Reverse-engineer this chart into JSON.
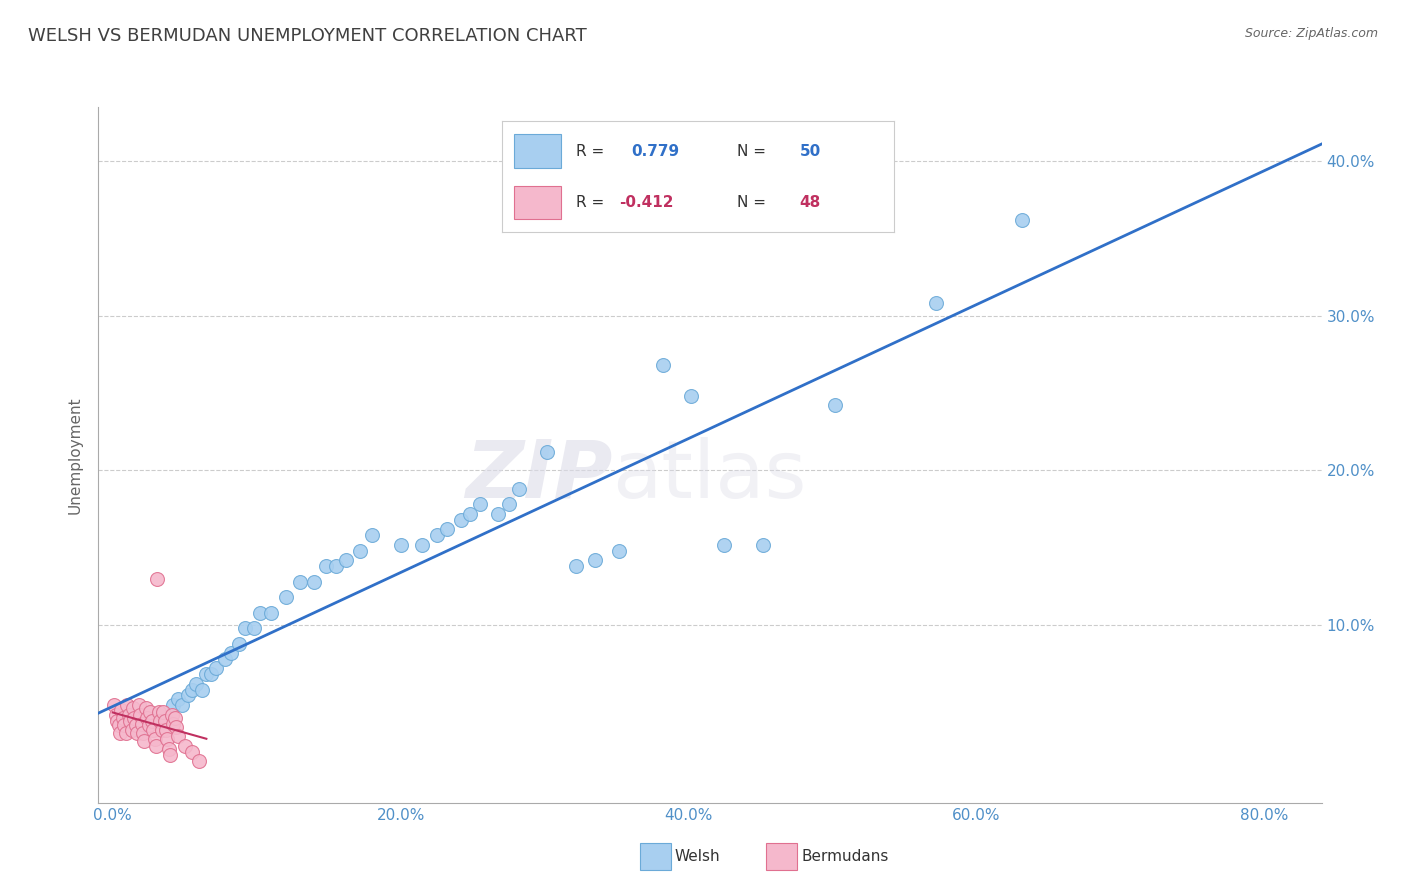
{
  "title": "WELSH VS BERMUDAN UNEMPLOYMENT CORRELATION CHART",
  "source": "Source: ZipAtlas.com",
  "ylabel": "Unemployment",
  "y_ticks": [
    0.1,
    0.2,
    0.3,
    0.4
  ],
  "y_tick_labels": [
    "10.0%",
    "20.0%",
    "30.0%",
    "40.0%"
  ],
  "x_ticks": [
    0.0,
    0.2,
    0.4,
    0.6,
    0.8
  ],
  "x_tick_labels": [
    "0.0%",
    "20.0%",
    "40.0%",
    "60.0%",
    "80.0%"
  ],
  "xlim": [
    -0.01,
    0.84
  ],
  "ylim": [
    -0.015,
    0.435
  ],
  "welsh_color": "#A8CFF0",
  "bermudan_color": "#F5B8CC",
  "welsh_edge_color": "#6BAAD8",
  "bermudan_edge_color": "#E07090",
  "trend_blue": "#3070C8",
  "trend_pink": "#C03060",
  "legend_r_welsh": "R =  0.779",
  "legend_n_welsh": "N = 50",
  "legend_r_bermudan": "R = -0.412",
  "legend_n_bermudan": "N = 48",
  "welsh_x": [
    0.018,
    0.025,
    0.032,
    0.038,
    0.042,
    0.045,
    0.048,
    0.052,
    0.055,
    0.058,
    0.062,
    0.065,
    0.068,
    0.072,
    0.078,
    0.082,
    0.088,
    0.092,
    0.098,
    0.102,
    0.11,
    0.12,
    0.13,
    0.14,
    0.148,
    0.155,
    0.162,
    0.172,
    0.18,
    0.2,
    0.215,
    0.225,
    0.232,
    0.242,
    0.248,
    0.255,
    0.268,
    0.275,
    0.282,
    0.302,
    0.322,
    0.335,
    0.352,
    0.382,
    0.402,
    0.425,
    0.452,
    0.502,
    0.572,
    0.632
  ],
  "welsh_y": [
    0.032,
    0.038,
    0.042,
    0.038,
    0.048,
    0.052,
    0.048,
    0.055,
    0.058,
    0.062,
    0.058,
    0.068,
    0.068,
    0.072,
    0.078,
    0.082,
    0.088,
    0.098,
    0.098,
    0.108,
    0.108,
    0.118,
    0.128,
    0.128,
    0.138,
    0.138,
    0.142,
    0.148,
    0.158,
    0.152,
    0.152,
    0.158,
    0.162,
    0.168,
    0.172,
    0.178,
    0.172,
    0.178,
    0.188,
    0.212,
    0.138,
    0.142,
    0.148,
    0.268,
    0.248,
    0.152,
    0.152,
    0.242,
    0.308,
    0.362
  ],
  "bermudan_x": [
    0.001,
    0.002,
    0.003,
    0.004,
    0.005,
    0.006,
    0.007,
    0.008,
    0.009,
    0.01,
    0.011,
    0.012,
    0.013,
    0.014,
    0.015,
    0.016,
    0.017,
    0.018,
    0.019,
    0.02,
    0.021,
    0.022,
    0.023,
    0.024,
    0.025,
    0.026,
    0.027,
    0.028,
    0.029,
    0.03,
    0.031,
    0.032,
    0.033,
    0.034,
    0.035,
    0.036,
    0.037,
    0.038,
    0.039,
    0.04,
    0.041,
    0.042,
    0.043,
    0.044,
    0.045,
    0.05,
    0.055,
    0.06
  ],
  "bermudan_y": [
    0.048,
    0.042,
    0.038,
    0.035,
    0.03,
    0.045,
    0.04,
    0.035,
    0.03,
    0.048,
    0.042,
    0.038,
    0.032,
    0.046,
    0.04,
    0.035,
    0.03,
    0.048,
    0.042,
    0.036,
    0.03,
    0.025,
    0.046,
    0.04,
    0.035,
    0.044,
    0.038,
    0.032,
    0.026,
    0.022,
    0.13,
    0.044,
    0.038,
    0.032,
    0.044,
    0.038,
    0.032,
    0.026,
    0.02,
    0.016,
    0.042,
    0.036,
    0.04,
    0.034,
    0.028,
    0.022,
    0.018,
    0.012
  ],
  "watermark_zip": "ZIP",
  "watermark_atlas": "atlas",
  "bg_color": "#FFFFFF",
  "grid_color": "#CCCCCC",
  "title_color": "#404040",
  "axis_label_color": "#5090C8",
  "right_axis_color": "#5090C8",
  "legend_text_color": "#333333",
  "bottom_legend_label1": "Welsh",
  "bottom_legend_label2": "Bermudans"
}
